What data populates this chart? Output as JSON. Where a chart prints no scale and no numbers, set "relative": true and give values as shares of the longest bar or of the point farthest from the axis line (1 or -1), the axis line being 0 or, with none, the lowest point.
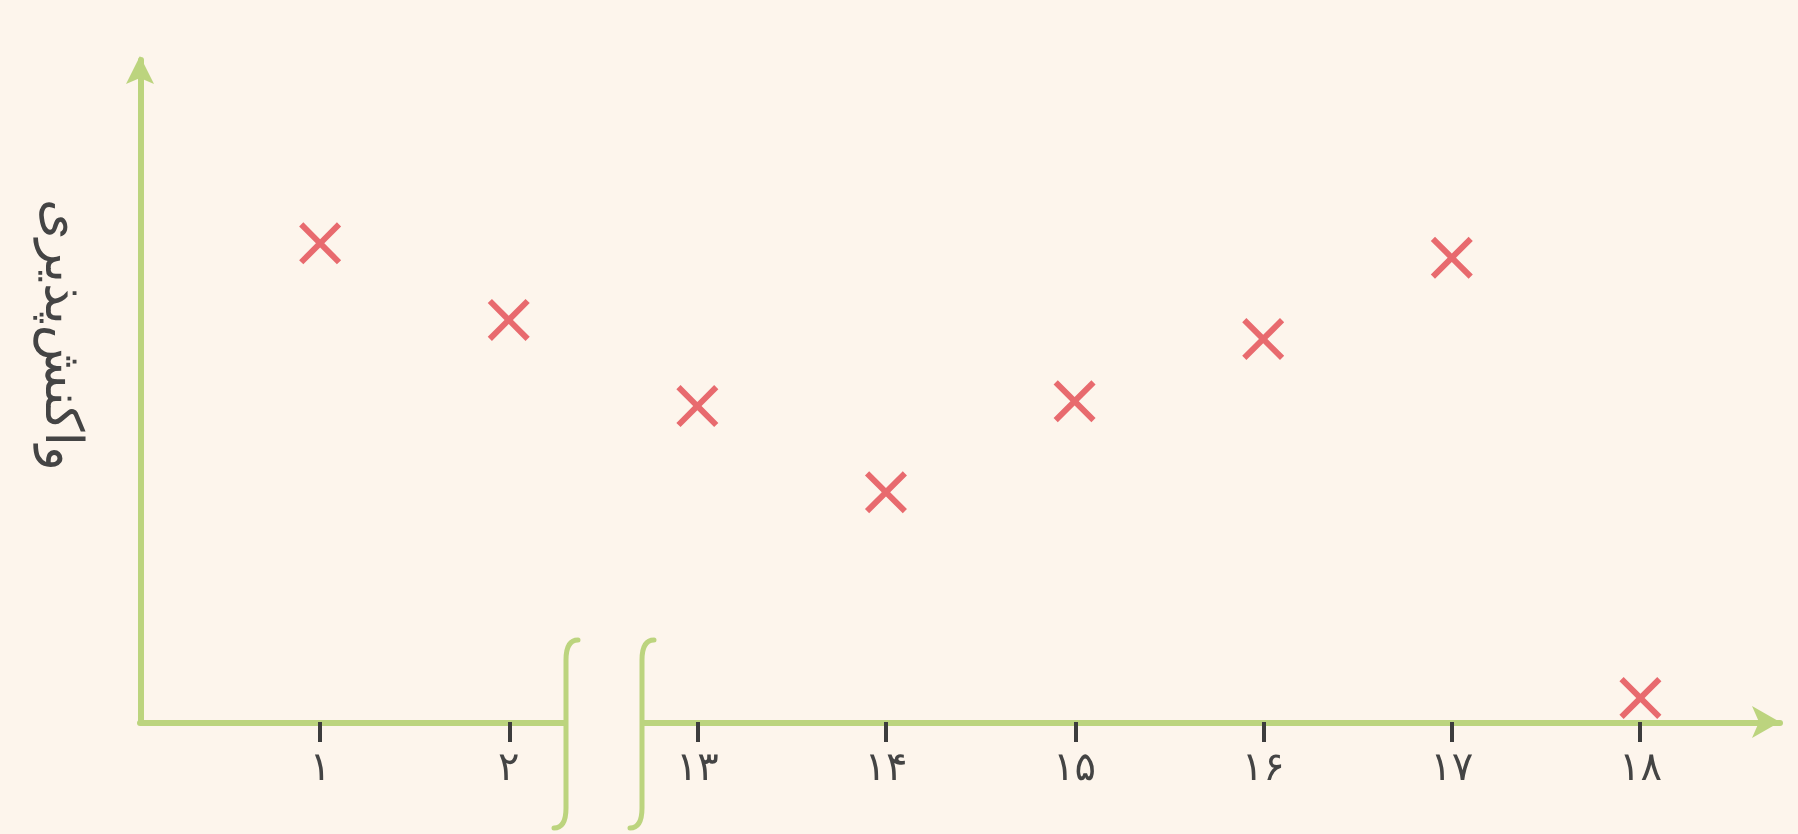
{
  "chart_data": {
    "type": "scatter",
    "ylabel": "واکنش‌پذیری",
    "categories": [
      "۱",
      "۲",
      "۱۳",
      "۱۴",
      "۱۵",
      "۱۶",
      "۱۷",
      "۱۸"
    ],
    "series": [
      {
        "color": "#e2474f",
        "values": [
          1,
          0.84,
          0.66,
          0.48,
          0.67,
          0.8,
          0.97,
          0.05
        ]
      }
    ],
    "relative": true,
    "marker": "cross",
    "grid": false,
    "tick_labels": "x"
  }
}
